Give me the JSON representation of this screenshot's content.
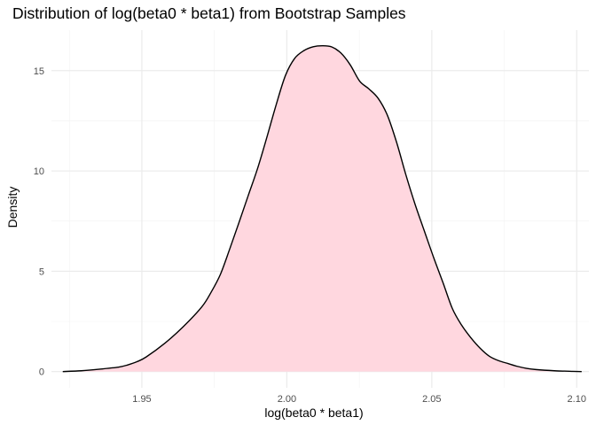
{
  "chart_data": {
    "type": "area",
    "title": "Distribution of log(beta0 * beta1) from Bootstrap Samples",
    "xlabel": "log(beta0 * beta1)",
    "ylabel": "Density",
    "xlim": [
      1.9188,
      2.1042
    ],
    "ylim": [
      -0.81,
      17.02
    ],
    "x_ticks": [
      1.95,
      2.0,
      2.05,
      2.1
    ],
    "x_tick_labels": [
      "1.95",
      "2.00",
      "2.05",
      "2.10"
    ],
    "y_ticks": [
      0,
      5,
      10,
      15
    ],
    "y_tick_labels": [
      "0",
      "5",
      "10",
      "15"
    ],
    "grid": true,
    "legend": "none",
    "fill_color": "#ffd7df",
    "line_color": "#000000",
    "x": [
      1.9227,
      1.9291,
      1.9355,
      1.9419,
      1.9451,
      1.9483,
      1.9515,
      1.9579,
      1.9643,
      1.9707,
      1.9739,
      1.9771,
      1.9803,
      1.9835,
      1.9867,
      1.9899,
      1.9931,
      1.9963,
      1.9995,
      2.0027,
      2.0059,
      2.0091,
      2.0123,
      2.0155,
      2.0187,
      2.0219,
      2.0251,
      2.0283,
      2.0315,
      2.0347,
      2.0379,
      2.0411,
      2.0443,
      2.0475,
      2.0507,
      2.0539,
      2.0571,
      2.0603,
      2.0635,
      2.0667,
      2.0699,
      2.0731,
      2.0763,
      2.0795,
      2.0827,
      2.0859,
      2.0923,
      2.0987,
      2.1017
    ],
    "values": [
      0.0,
      0.04,
      0.12,
      0.22,
      0.33,
      0.49,
      0.73,
      1.41,
      2.24,
      3.23,
      3.96,
      4.85,
      6.11,
      7.43,
      8.78,
      10.12,
      11.67,
      13.29,
      14.75,
      15.61,
      16.0,
      16.19,
      16.24,
      16.18,
      15.87,
      15.28,
      14.48,
      14.09,
      13.62,
      12.77,
      11.41,
      9.79,
      8.31,
      6.98,
      5.66,
      4.42,
      3.14,
      2.31,
      1.68,
      1.16,
      0.76,
      0.54,
      0.4,
      0.26,
      0.16,
      0.1,
      0.04,
      0.01,
      0.0
    ]
  }
}
